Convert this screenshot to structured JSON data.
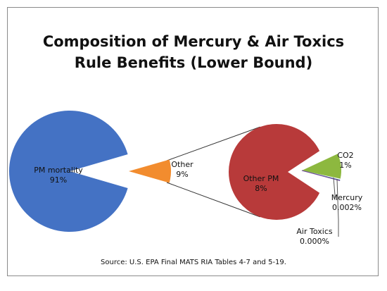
{
  "chart_data": [
    {
      "type": "pie",
      "title": "Composition of Mercury & Air Toxics Rule Benefits (Lower Bound)",
      "title_lines": [
        "Composition of Mercury & Air Toxics",
        "Rule Benefits (Lower Bound)"
      ],
      "slices": [
        {
          "label": "PM mortality",
          "value_label": "91%",
          "value": 91,
          "color": "#4472C4"
        },
        {
          "label": "Other",
          "value_label": "9%",
          "value": 9,
          "color": "#F28C2E"
        }
      ]
    },
    {
      "type": "pie",
      "title": "",
      "slices": [
        {
          "label": "Other PM",
          "value_label": "8%",
          "value": 8,
          "color": "#B83A3A"
        },
        {
          "label": "CO2",
          "value_label": "1%",
          "value": 1,
          "color": "#8DB83F"
        },
        {
          "label": "Mercury",
          "value_label": "0.002%",
          "value": 0.002,
          "color": "#4B6FA5"
        },
        {
          "label": "Air Toxics",
          "value_label": "0.000%",
          "value": 0.0,
          "color": "#7A4E9A"
        }
      ]
    }
  ],
  "source": "Source: U.S. EPA Final MATS RIA Tables 4-7 and 5-19.",
  "colors": {
    "connector": "#333333",
    "frame_border": "#8a8a8a"
  }
}
